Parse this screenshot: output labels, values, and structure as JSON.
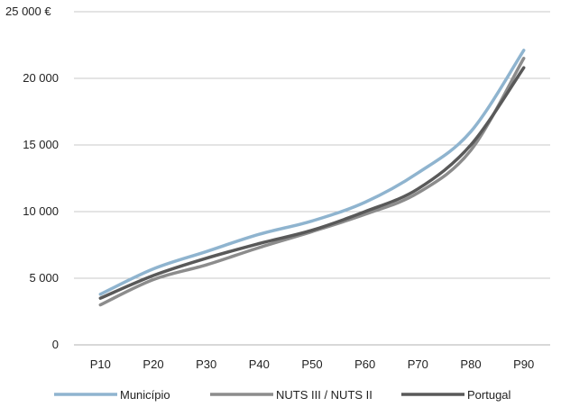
{
  "chart_data": {
    "type": "line",
    "title": "",
    "xlabel": "",
    "ylabel": "",
    "categories": [
      "P10",
      "P20",
      "P30",
      "P40",
      "P50",
      "P60",
      "P70",
      "P80",
      "P90"
    ],
    "ylim": [
      0,
      25000
    ],
    "y_ticks": [
      0,
      5000,
      10000,
      15000,
      20000,
      25000
    ],
    "y_tick_labels": [
      "0",
      "5 000",
      "10 000",
      "15 000",
      "20 000",
      "25 000 €"
    ],
    "grid": true,
    "legend_position": "bottom",
    "series": [
      {
        "name": "Município",
        "color": "#8FB4CF",
        "values": [
          3800,
          5700,
          7000,
          8300,
          9300,
          10700,
          12900,
          16000,
          22100
        ]
      },
      {
        "name": "NUTS III / NUTS II",
        "color": "#8C8C8C",
        "values": [
          3000,
          4900,
          6000,
          7300,
          8500,
          9800,
          11400,
          14600,
          21500
        ]
      },
      {
        "name": "Portugal",
        "color": "#595959",
        "values": [
          3500,
          5200,
          6500,
          7600,
          8600,
          10000,
          11700,
          15000,
          20800
        ]
      }
    ]
  }
}
